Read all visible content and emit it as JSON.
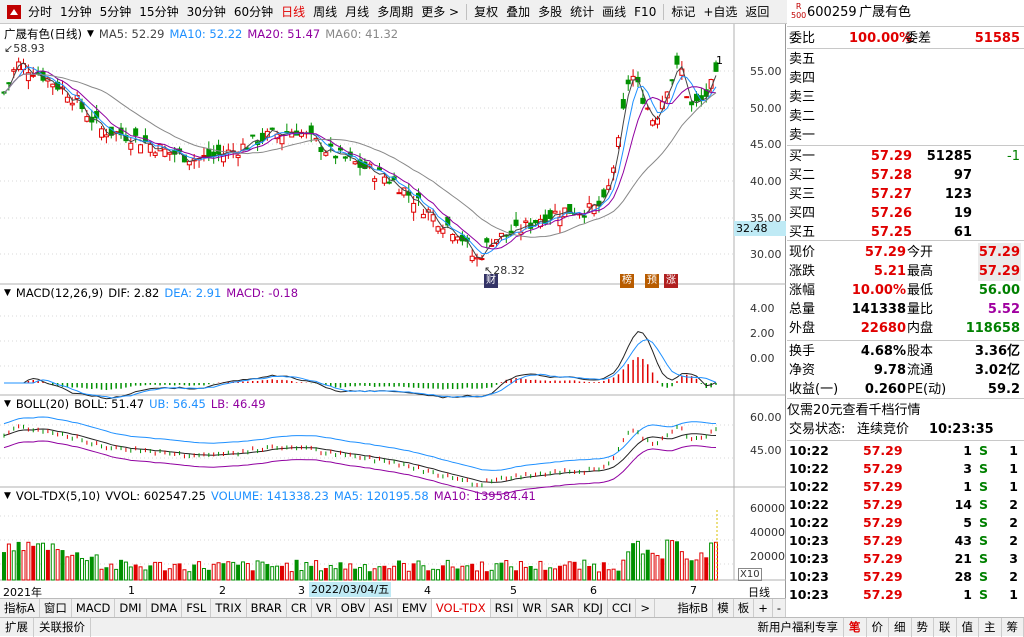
{
  "toolbar": {
    "items": [
      "分时",
      "1分钟",
      "5分钟",
      "15分钟",
      "30分钟",
      "60分钟",
      "日线",
      "周线",
      "月线",
      "多周期",
      "更多 >",
      "复权",
      "叠加",
      "多股",
      "统计",
      "画线",
      "F10",
      "标记",
      "+自选",
      "返回"
    ]
  },
  "kline": {
    "title": "广晟有色(日线)",
    "ma5": "MA5: 52.29",
    "ma10": "MA10: 52.22",
    "ma20": "MA20: 51.47",
    "ma60": "MA60: 41.32",
    "high_label": "58.93",
    "low_label": "28.32",
    "marker": "1",
    "price_tag": "32.48",
    "yticks": [
      "55.00",
      "50.00",
      "45.00",
      "40.00",
      "35.00",
      "30.00"
    ],
    "badges": [
      "财",
      "榜",
      "预",
      "涨"
    ]
  },
  "macd": {
    "title": "MACD(12,26,9)",
    "dif": "DIF: 2.82",
    "dea": "DEA: 2.91",
    "macd": "MACD: -0.18",
    "yticks": [
      "4.00",
      "2.00",
      "0.00"
    ]
  },
  "boll": {
    "title": "BOLL(20)",
    "boll": "BOLL: 51.47",
    "ub": "UB: 56.45",
    "lb": "LB: 46.49",
    "yticks": [
      "60.00",
      "45.00"
    ]
  },
  "vol": {
    "title": "VOL-TDX(5,10)",
    "vvol": "VVOL: 602547.25",
    "volume": "VOLUME: 141338.23",
    "ma5": "MA5: 120195.58",
    "ma10": "MA10: 139584.41",
    "yticks": [
      "60000",
      "40000",
      "20000"
    ],
    "unit": "X10"
  },
  "xaxis": {
    "labels": [
      "2021年",
      "1",
      "2",
      "3",
      "4",
      "5",
      "6",
      "7"
    ],
    "cursor_date": "2022/03/04/五",
    "period": "日线"
  },
  "bottomtabs": [
    "指标A",
    "窗口",
    "MACD",
    "DMI",
    "DMA",
    "FSL",
    "TRIX",
    "BRAR",
    "CR",
    "VR",
    "OBV",
    "ASI",
    "EMV",
    "VOL-TDX",
    "RSI",
    "WR",
    "SAR",
    "KDJ",
    "CCI",
    ">",
    "指标B",
    "模",
    "板",
    "+",
    "-"
  ],
  "statusbar": {
    "left": [
      "扩展",
      "关联报价"
    ],
    "right": [
      "新用户福利专享",
      "笔",
      "价",
      "细",
      "势",
      "联",
      "值",
      "主",
      "筹"
    ]
  },
  "quote": {
    "logo_top": "R",
    "logo_bottom": "500",
    "code": "600259",
    "name": "广晟有色",
    "weibi_label": "委比",
    "weibi": "100.00%",
    "weicha_label": "委差",
    "weicha": "51585",
    "sells": [
      {
        "label": "卖五",
        "price": "",
        "vol": ""
      },
      {
        "label": "卖四",
        "price": "",
        "vol": ""
      },
      {
        "label": "卖三",
        "price": "",
        "vol": ""
      },
      {
        "label": "卖二",
        "price": "",
        "vol": ""
      },
      {
        "label": "卖一",
        "price": "",
        "vol": ""
      }
    ],
    "buys": [
      {
        "label": "买一",
        "price": "57.29",
        "vol": "51285",
        "chg": "-1"
      },
      {
        "label": "买二",
        "price": "57.28",
        "vol": "97",
        "chg": ""
      },
      {
        "label": "买三",
        "price": "57.27",
        "vol": "123",
        "chg": ""
      },
      {
        "label": "买四",
        "price": "57.26",
        "vol": "19",
        "chg": ""
      },
      {
        "label": "买五",
        "price": "57.25",
        "vol": "61",
        "chg": ""
      }
    ],
    "stats": [
      {
        "l1": "现价",
        "v1": "57.29",
        "l2": "今开",
        "v2": "57.29"
      },
      {
        "l1": "涨跌",
        "v1": "5.21",
        "l2": "最高",
        "v2": "57.29"
      },
      {
        "l1": "涨幅",
        "v1": "10.00%",
        "l2": "最低",
        "v2": "56.00"
      },
      {
        "l1": "总量",
        "v1": "141338",
        "l2": "量比",
        "v2": "5.52"
      },
      {
        "l1": "外盘",
        "v1": "22680",
        "l2": "内盘",
        "v2": "118658"
      },
      {
        "l1": "换手",
        "v1": "4.68%",
        "l2": "股本",
        "v2": "3.36亿"
      },
      {
        "l1": "净资",
        "v1": "9.78",
        "l2": "流通",
        "v2": "3.02亿"
      },
      {
        "l1": "收益(一)",
        "v1": "0.260",
        "l2": "PE(动)",
        "v2": "59.2"
      }
    ],
    "promo": "仅需20元查看千档行情",
    "trade_state_label": "交易状态:",
    "trade_state": "连续竞价",
    "trade_time": "10:23:35",
    "ticks": [
      {
        "t": "10:22",
        "p": "57.29",
        "v": "1",
        "s": "S",
        "n": "1"
      },
      {
        "t": "10:22",
        "p": "57.29",
        "v": "3",
        "s": "S",
        "n": "1"
      },
      {
        "t": "10:22",
        "p": "57.29",
        "v": "1",
        "s": "S",
        "n": "1"
      },
      {
        "t": "10:22",
        "p": "57.29",
        "v": "14",
        "s": "S",
        "n": "2"
      },
      {
        "t": "10:22",
        "p": "57.29",
        "v": "5",
        "s": "S",
        "n": "2"
      },
      {
        "t": "10:23",
        "p": "57.29",
        "v": "43",
        "s": "S",
        "n": "2"
      },
      {
        "t": "10:23",
        "p": "57.29",
        "v": "21",
        "s": "S",
        "n": "3"
      },
      {
        "t": "10:23",
        "p": "57.29",
        "v": "28",
        "s": "S",
        "n": "2"
      },
      {
        "t": "10:23",
        "p": "57.29",
        "v": "1",
        "s": "S",
        "n": "1"
      }
    ]
  },
  "colors": {
    "up": "#e00000",
    "down": "#009000",
    "ma5": "#444444",
    "ma10": "#1e90ff",
    "ma20": "#9000a0",
    "ma60": "#888888"
  }
}
